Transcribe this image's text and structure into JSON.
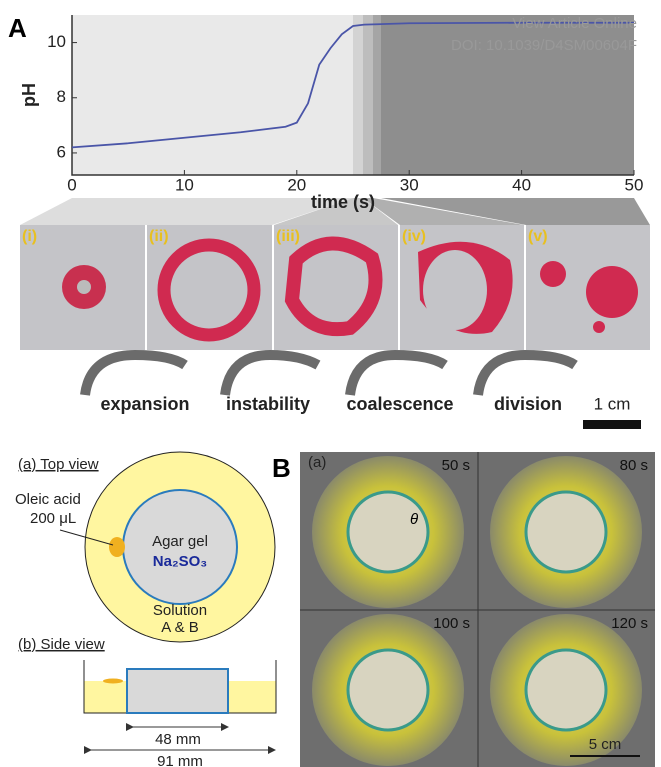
{
  "watermark": [
    "View Article Online",
    "DOI: 10.1039/D4SM00604F"
  ],
  "panel_labels": [
    "A",
    "B"
  ],
  "chart_data": {
    "type": "line",
    "x_label": "time (s)",
    "y_label": "pH",
    "x": [
      0,
      5,
      10,
      15,
      19,
      20,
      21,
      22,
      23,
      24,
      25,
      26,
      30,
      40,
      50
    ],
    "values": [
      6.2,
      6.35,
      6.55,
      6.75,
      6.95,
      7.1,
      7.8,
      9.2,
      9.8,
      10.3,
      10.6,
      10.65,
      10.7,
      10.72,
      10.72
    ],
    "color": "#4a55a8",
    "xlim": [
      0,
      50
    ],
    "ylim": [
      5.2,
      11
    ],
    "xticks": [
      0,
      10,
      20,
      30,
      40,
      50
    ],
    "yticks": [
      6,
      8,
      10
    ]
  },
  "stages": [
    "(i)",
    "(ii)",
    "(iii)",
    "(iv)",
    "(v)"
  ],
  "processes": [
    "expansion",
    "instability",
    "coalescence",
    "division"
  ],
  "scale_bar_a": "1 cm",
  "diagram": {
    "top_title": "(a) Top view",
    "oleic": "Oleic acid",
    "volume": "200 μL",
    "agar": "Agar gel",
    "salt": "Na₂SO₃",
    "solution": "Solution",
    "ab": "A & B",
    "side_title": "(b) Side view",
    "inner": "48 mm",
    "outer": "91 mm"
  },
  "photos": {
    "label": "(a)",
    "times": [
      "50 s",
      "80 s",
      "100 s",
      "120 s"
    ],
    "theta": "θ",
    "scale": "5 cm"
  }
}
